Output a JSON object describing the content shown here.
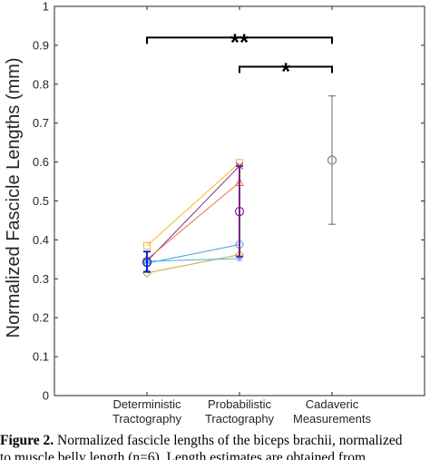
{
  "chart_data": {
    "type": "scatter",
    "ylabel": "Normalized Fascicle Lengths (mm)",
    "xlabel": "",
    "ylim": [
      0,
      1
    ],
    "yticks": [
      "0",
      "0.1",
      "0.2",
      "0.3",
      "0.4",
      "0.5",
      "0.6",
      "0.7",
      "0.8",
      "0.9",
      "1"
    ],
    "categories": [
      "Deterministic\nTractography",
      "Probabilistic\nTractography",
      "Cadaveric\nMeasurements"
    ],
    "category_lines": [
      [
        "Deterministic",
        "Tractography"
      ],
      [
        "Probabilistic",
        "Tractography"
      ],
      [
        "Cadaveric",
        "Measurements"
      ]
    ],
    "grid": false,
    "subjects": [
      {
        "marker": "square",
        "color": "#f5b731",
        "values": [
          0.385,
          0.598
        ]
      },
      {
        "marker": "x",
        "color": "#7e2f8e",
        "values": [
          0.345,
          0.59
        ]
      },
      {
        "marker": "triangle",
        "color": "#e8753c",
        "values": [
          0.35,
          0.548
        ]
      },
      {
        "marker": "circle",
        "color": "#4d9bd5",
        "values": [
          0.34,
          0.388
        ]
      },
      {
        "marker": "diamond",
        "color": "#c2ad30",
        "values": [
          0.315,
          0.362
        ]
      },
      {
        "marker": "star",
        "color": "#3fb6e6",
        "values": [
          0.345,
          0.352
        ]
      }
    ],
    "summary": [
      {
        "category": 0,
        "mean": 0.343,
        "low": 0.318,
        "high": 0.37,
        "color": "#1020d8"
      },
      {
        "category": 1,
        "mean": 0.473,
        "low": 0.357,
        "high": 0.59,
        "color": "#7e1f8e"
      },
      {
        "category": 2,
        "mean": 0.605,
        "low": 0.44,
        "high": 0.77,
        "color": "#7f7f7f"
      }
    ],
    "significance": [
      {
        "from": 0,
        "to": 2,
        "y": 0.92,
        "label": "**"
      },
      {
        "from": 1,
        "to": 2,
        "y": 0.845,
        "label": "*"
      }
    ]
  },
  "caption": {
    "label": "Figure 2.",
    "line1": " Normalized fascicle lengths of the biceps brachii, normalized",
    "line2": "to muscle belly length (n=6). Length estimates are obtained from"
  }
}
